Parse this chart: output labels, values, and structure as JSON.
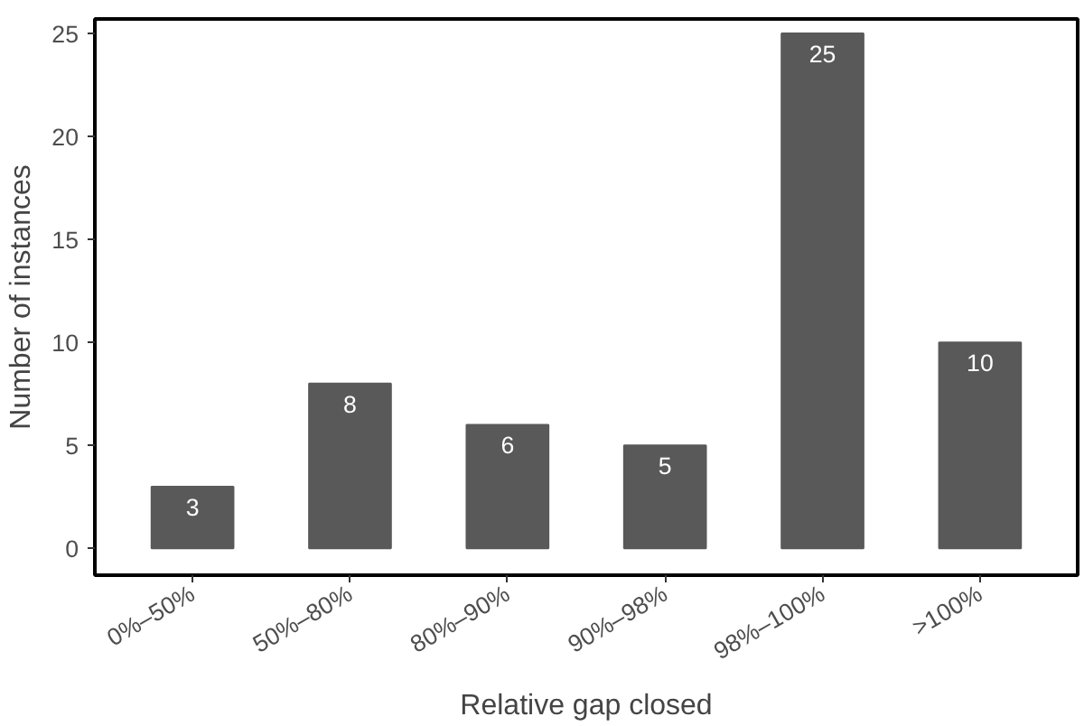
{
  "chart_data": {
    "type": "bar",
    "xlabel": "Relative gap closed",
    "ylabel": "Number of instances",
    "categories": [
      "0%–50%",
      "50%–80%",
      "80%–90%",
      "90%–98%",
      "98%–100%",
      ">100%"
    ],
    "values": [
      3,
      8,
      6,
      5,
      25,
      10
    ],
    "color": "#595959",
    "ylim": [
      -1.3,
      25.7
    ],
    "yticks": [
      0,
      5,
      10,
      15,
      20,
      25
    ],
    "grid": false,
    "data_labels": true
  }
}
